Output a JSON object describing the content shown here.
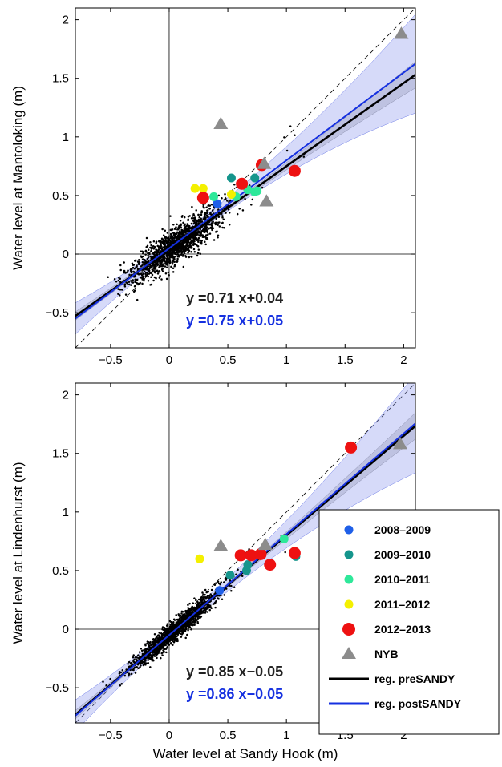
{
  "x_label": "Water level at Sandy Hook (m)",
  "colors": {
    "2008-2009": "#1f5fe8",
    "2009-2010": "#15958c",
    "2010-2011": "#2ee89a",
    "2011-2012": "#f4f000",
    "2012-2013": "#ee1111",
    "NYB": "#8c8c8c",
    "pre": "#000000",
    "post": "#1530e0"
  },
  "legend": [
    {
      "key": "2008-2009",
      "label": "2008–2009",
      "marker": "dot-small"
    },
    {
      "key": "2009-2010",
      "label": "2009–2010",
      "marker": "dot-small"
    },
    {
      "key": "2010-2011",
      "label": "2010–2011",
      "marker": "dot-small"
    },
    {
      "key": "2011-2012",
      "label": "2011–2012",
      "marker": "dot-small"
    },
    {
      "key": "2012-2013",
      "label": "2012–2013",
      "marker": "dot-large"
    },
    {
      "key": "NYB",
      "label": "NYB",
      "marker": "triangle"
    },
    {
      "key": "pre",
      "label": "reg. preSANDY",
      "marker": "line"
    },
    {
      "key": "post",
      "label": "reg. postSANDY",
      "marker": "line"
    }
  ],
  "chart_data": [
    {
      "type": "scatter",
      "ylabel": "Water level at Mantoloking (m)",
      "xlim": [
        -0.8,
        2.1
      ],
      "ylim": [
        -0.8,
        2.1
      ],
      "xticks": [
        -0.5,
        0,
        0.5,
        1,
        1.5,
        2
      ],
      "xtick_labels": [
        "−0.5",
        "0",
        "0.5",
        "1",
        "1.5",
        "2"
      ],
      "yticks": [
        -0.5,
        0,
        0.5,
        1,
        1.5,
        2
      ],
      "ytick_labels": [
        "−0.5",
        "0",
        "0.5",
        "1",
        "1.5",
        "2"
      ],
      "regression": [
        {
          "key": "pre",
          "slope": 0.71,
          "intercept": 0.04,
          "label": "y =0.71 x+0.04"
        },
        {
          "key": "post",
          "slope": 0.75,
          "intercept": 0.05,
          "label": "y =0.75 x+0.05"
        }
      ],
      "series": [
        {
          "key": "2008-2009",
          "points": [
            [
              0.41,
              0.43
            ]
          ]
        },
        {
          "key": "2009-2010",
          "points": [
            [
              0.53,
              0.65
            ],
            [
              0.73,
              0.65
            ],
            [
              0.79,
              0.75
            ]
          ]
        },
        {
          "key": "2010-2011",
          "points": [
            [
              0.38,
              0.49
            ],
            [
              0.57,
              0.49
            ],
            [
              0.67,
              0.55
            ],
            [
              0.73,
              0.53
            ],
            [
              0.75,
              0.54
            ]
          ]
        },
        {
          "key": "2011-2012",
          "points": [
            [
              0.22,
              0.56
            ],
            [
              0.29,
              0.56
            ],
            [
              0.53,
              0.51
            ]
          ]
        },
        {
          "key": "2012-2013",
          "points": [
            [
              0.29,
              0.48
            ],
            [
              0.62,
              0.6
            ],
            [
              0.79,
              0.76
            ],
            [
              1.07,
              0.71
            ]
          ]
        },
        {
          "key": "NYB",
          "points": [
            [
              0.44,
              1.11
            ],
            [
              0.81,
              0.77
            ],
            [
              0.83,
              0.45
            ],
            [
              1.98,
              1.88
            ]
          ]
        }
      ]
    },
    {
      "type": "scatter",
      "ylabel": "Water level at Lindenhurst (m)",
      "xlim": [
        -0.8,
        2.1
      ],
      "ylim": [
        -0.8,
        2.1
      ],
      "xticks": [
        -0.5,
        0,
        0.5,
        1,
        1.5,
        2
      ],
      "xtick_labels": [
        "−0.5",
        "0",
        "0.5",
        "1",
        "1.5",
        "2"
      ],
      "yticks": [
        -0.5,
        0,
        0.5,
        1,
        1.5,
        2
      ],
      "ytick_labels": [
        "−0.5",
        "0",
        "0.5",
        "1",
        "1.5",
        "2"
      ],
      "regression": [
        {
          "key": "pre",
          "slope": 0.85,
          "intercept": -0.05,
          "label": "y =0.85 x−0.05"
        },
        {
          "key": "post",
          "slope": 0.86,
          "intercept": -0.05,
          "label": "y =0.86 x−0.05"
        }
      ],
      "series": [
        {
          "key": "2008-2009",
          "points": [
            [
              0.43,
              0.33
            ]
          ]
        },
        {
          "key": "2009-2010",
          "points": [
            [
              0.52,
              0.46
            ],
            [
              0.66,
              0.5
            ],
            [
              0.67,
              0.55
            ],
            [
              1.08,
              0.62
            ]
          ]
        },
        {
          "key": "2010-2011",
          "points": [
            [
              0.98,
              0.77
            ]
          ]
        },
        {
          "key": "2011-2012",
          "points": [
            [
              0.26,
              0.6
            ]
          ]
        },
        {
          "key": "2012-2013",
          "points": [
            [
              0.61,
              0.63
            ],
            [
              0.7,
              0.63
            ],
            [
              0.78,
              0.64
            ],
            [
              0.86,
              0.55
            ],
            [
              1.07,
              0.65
            ],
            [
              1.55,
              1.55
            ]
          ]
        },
        {
          "key": "NYB",
          "points": [
            [
              0.44,
              0.71
            ],
            [
              0.82,
              0.72
            ],
            [
              1.97,
              1.58
            ]
          ]
        }
      ]
    }
  ]
}
